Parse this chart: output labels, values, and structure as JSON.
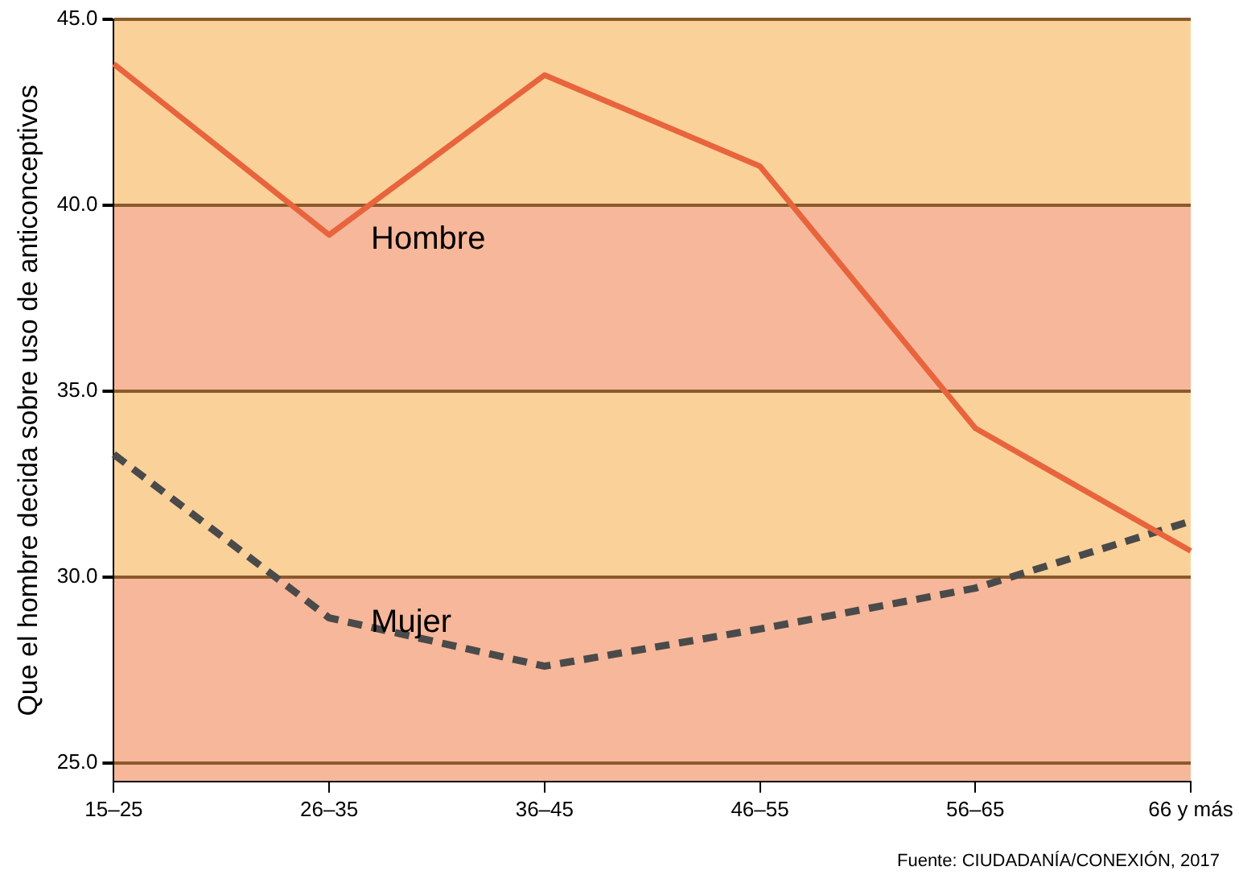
{
  "chart_data": {
    "type": "line",
    "ylabel": "Que el hombre decida sobre uso de anticonceptivos",
    "categories": [
      "15–25",
      "26–35",
      "36–45",
      "46–55",
      "56–65",
      "66 y más"
    ],
    "series": [
      {
        "name": "Hombre",
        "color": "#e8643c",
        "line_style": "solid",
        "values": [
          43.8,
          39.2,
          43.5,
          41.05,
          34.0,
          30.7
        ]
      },
      {
        "name": "Mujer",
        "color": "#4a4a4a",
        "line_style": "dashed",
        "values": [
          33.3,
          28.9,
          27.6,
          28.6,
          29.7,
          31.5
        ]
      }
    ],
    "ylim": [
      24.5,
      45
    ],
    "yticks": [
      {
        "value": 25,
        "label": "25.0"
      },
      {
        "value": 30,
        "label": "30.0"
      },
      {
        "value": 35,
        "label": "35.0"
      },
      {
        "value": 40,
        "label": "40.0"
      },
      {
        "value": 45,
        "label": "45.0"
      }
    ],
    "bands": [
      {
        "axis": "y",
        "from": 24.5,
        "to": 30,
        "color": "#f7b79a"
      },
      {
        "axis": "y",
        "from": 30,
        "to": 35,
        "color": "#fbd19a"
      },
      {
        "axis": "y",
        "from": 35,
        "to": 40,
        "color": "#f7b79a"
      },
      {
        "axis": "y",
        "from": 40,
        "to": 45,
        "color": "#fbd19a"
      }
    ],
    "grid": "y",
    "legend": false,
    "marker": "none",
    "annotations": [
      "Fuente: CIUDADANÍA/CONEXIÓN, 2017"
    ]
  }
}
